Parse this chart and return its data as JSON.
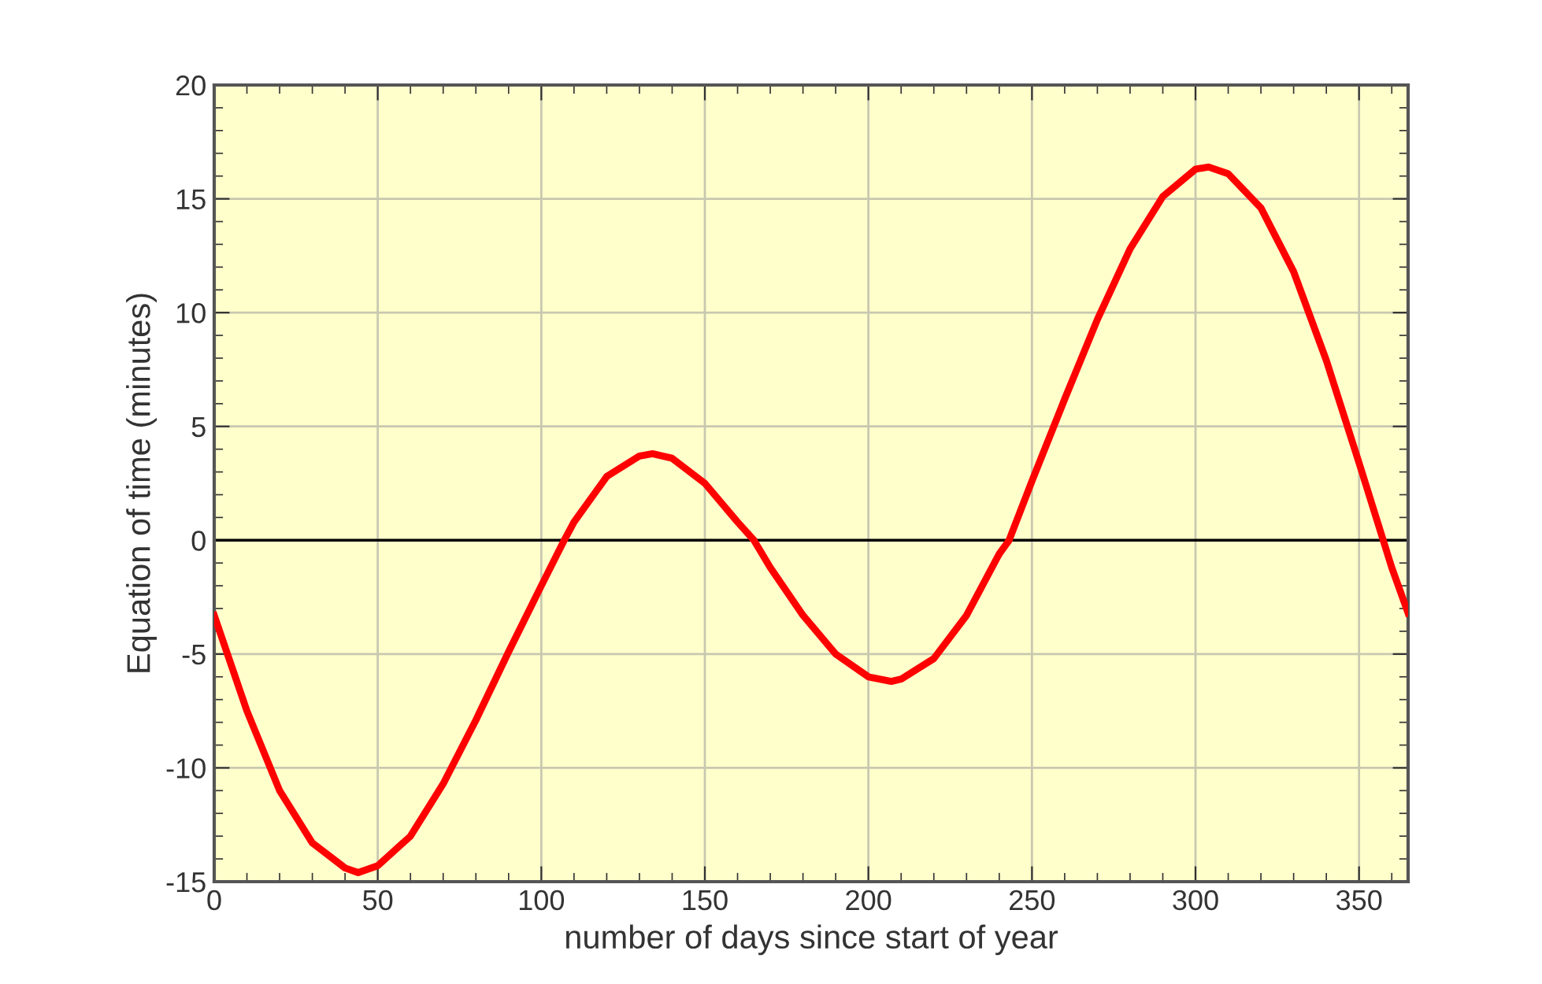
{
  "chart_data": {
    "type": "line",
    "xlabel": "number of days since start of year",
    "ylabel": "Equation of time (minutes)",
    "x": [
      0,
      10,
      20,
      30,
      40,
      44,
      50,
      60,
      70,
      80,
      90,
      100,
      107,
      110,
      120,
      130,
      134,
      140,
      150,
      160,
      165,
      170,
      180,
      190,
      200,
      207,
      210,
      220,
      230,
      240,
      243,
      250,
      260,
      270,
      280,
      290,
      300,
      304,
      310,
      320,
      330,
      340,
      350,
      360,
      365
    ],
    "series": [
      {
        "color": "#ff0000",
        "values": [
          -3.3,
          -7.5,
          -11.0,
          -13.3,
          -14.4,
          -14.6,
          -14.3,
          -13.0,
          -10.7,
          -7.9,
          -4.9,
          -2.0,
          0,
          0.8,
          2.8,
          3.7,
          3.8,
          3.6,
          2.5,
          0.8,
          0,
          -1.2,
          -3.3,
          -5.0,
          -6.0,
          -6.2,
          -6.1,
          -5.2,
          -3.3,
          -0.6,
          0,
          2.6,
          6.2,
          9.7,
          12.8,
          15.1,
          16.3,
          16.4,
          16.1,
          14.6,
          11.8,
          7.9,
          3.4,
          -1.2,
          -3.2
        ]
      }
    ],
    "xlim": [
      0,
      365
    ],
    "xticks": [
      0,
      50,
      100,
      150,
      200,
      250,
      300,
      350
    ],
    "ylim": [
      -15,
      20
    ],
    "yticks": [
      -15,
      -10,
      -5,
      0,
      5,
      10,
      15,
      20
    ],
    "ref_lines": [
      {
        "axis": "y",
        "value": 0,
        "color": "#000000"
      }
    ],
    "grid": true,
    "marker": "none",
    "line_style": "solid"
  }
}
